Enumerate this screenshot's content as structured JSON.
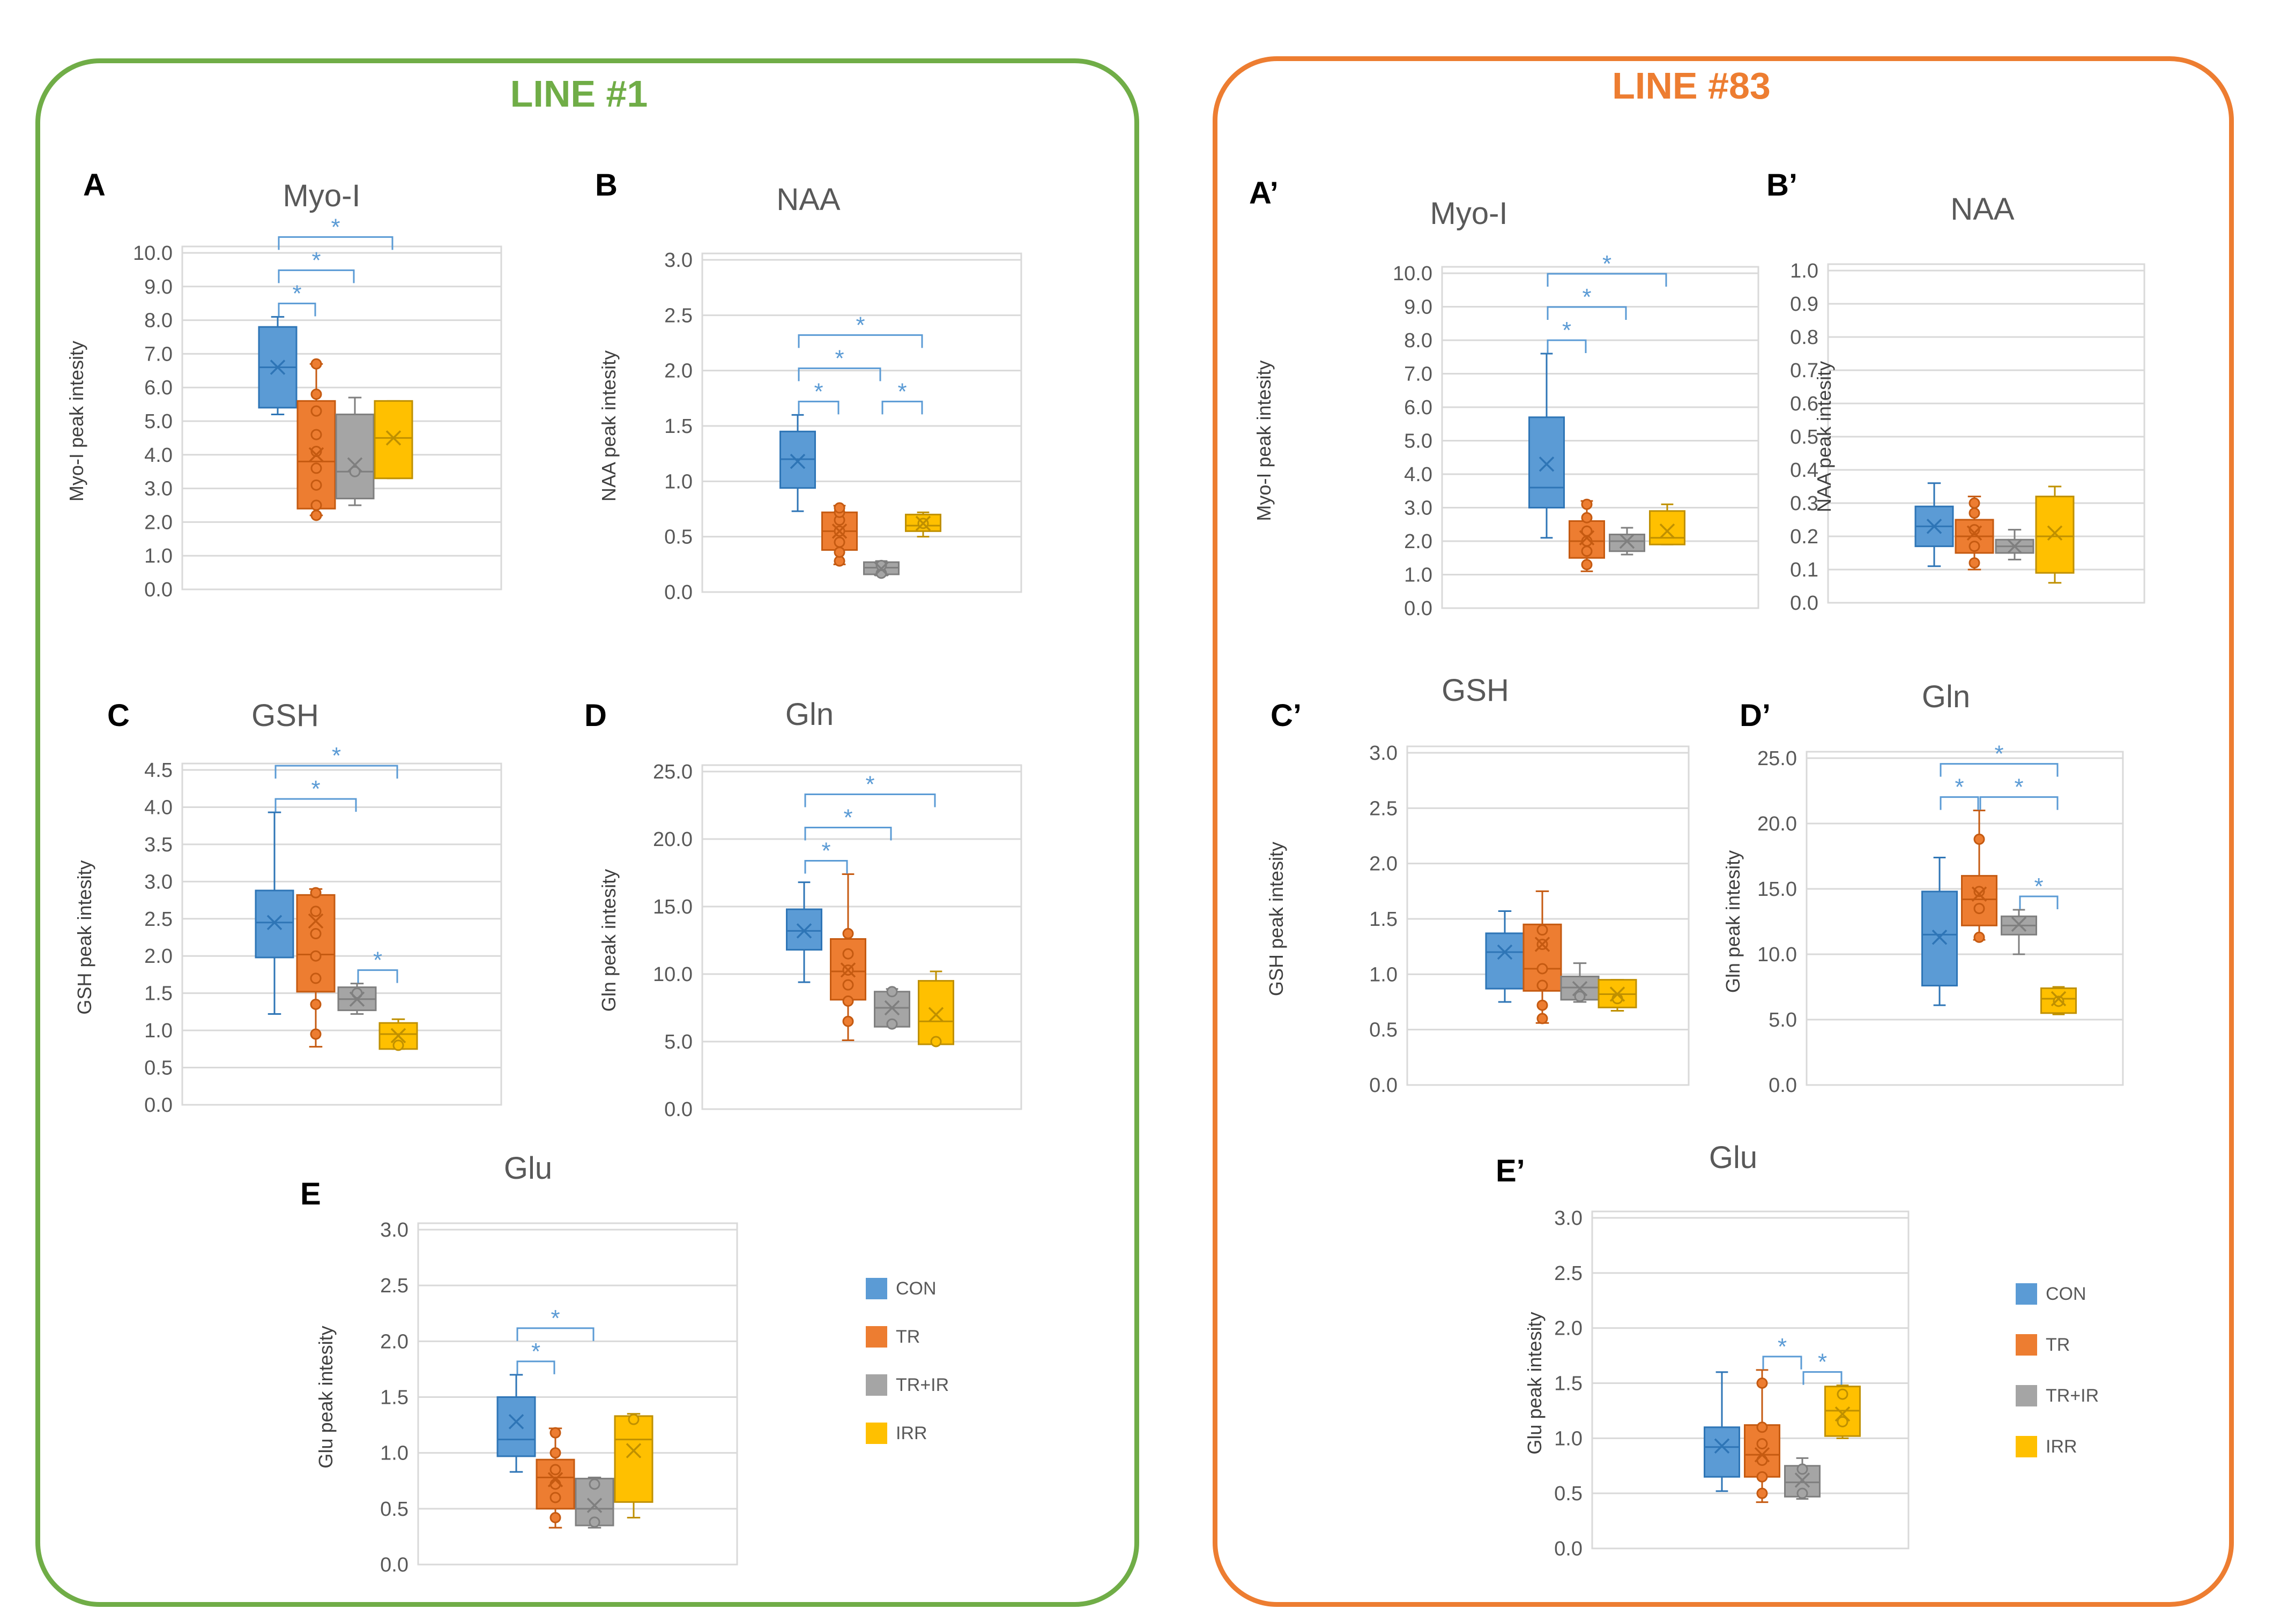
{
  "figure": {
    "lines": [
      {
        "title": "LINE #1",
        "color": "#70AD47"
      },
      {
        "title": "LINE #83",
        "color": "#ED7D31"
      }
    ],
    "legend": [
      {
        "label": "CON",
        "color": "#5B9BD5"
      },
      {
        "label": "TR",
        "color": "#ED7D31"
      },
      {
        "label": "TR+IR",
        "color": "#A5A5A5"
      },
      {
        "label": "IRR",
        "color": "#FFC000"
      }
    ]
  },
  "chart_data": [
    {
      "type": "box",
      "panel": "A",
      "title": "Myo-I",
      "ylabel": "Myo-I peak intesity",
      "ylim": [
        0,
        10
      ],
      "ticks": [
        0,
        1,
        2,
        3,
        4,
        5,
        6,
        7,
        8,
        9,
        10
      ],
      "decimals": 1,
      "groups": [
        {
          "name": "CON",
          "min": 5.2,
          "q1": 5.4,
          "median": 6.6,
          "q3": 7.8,
          "max": 8.1,
          "mean": 6.6,
          "points": []
        },
        {
          "name": "TR",
          "min": 2.2,
          "q1": 2.4,
          "median": 3.8,
          "q3": 5.6,
          "max": 6.7,
          "mean": 4.0,
          "points": [
            2.2,
            2.5,
            3.1,
            3.6,
            4.1,
            4.6,
            5.3,
            5.8,
            6.7
          ]
        },
        {
          "name": "TR+IR",
          "min": 2.5,
          "q1": 2.7,
          "median": 3.5,
          "q3": 5.2,
          "max": 5.7,
          "mean": 3.7,
          "points": [
            3.5
          ]
        },
        {
          "name": "IRR",
          "min": 3.3,
          "q1": 3.3,
          "median": 4.5,
          "q3": 5.6,
          "max": 5.6,
          "mean": 4.5,
          "points": []
        }
      ],
      "sig": [
        {
          "g1": 0,
          "g2": 1,
          "level": 1
        },
        {
          "g1": 0,
          "g2": 2,
          "level": 2
        },
        {
          "g1": 0,
          "g2": 3,
          "level": 3
        }
      ],
      "sig_label": "*"
    },
    {
      "type": "box",
      "panel": "B",
      "title": "NAA",
      "ylabel": "NAA peak intesity",
      "ylim": [
        0,
        3
      ],
      "ticks": [
        0,
        0.5,
        1,
        1.5,
        2,
        2.5,
        3
      ],
      "decimals": 1,
      "groups": [
        {
          "name": "CON",
          "min": 0.73,
          "q1": 0.94,
          "median": 1.2,
          "q3": 1.45,
          "max": 1.6,
          "mean": 1.18,
          "points": []
        },
        {
          "name": "TR",
          "min": 0.25,
          "q1": 0.38,
          "median": 0.55,
          "q3": 0.72,
          "max": 0.78,
          "mean": 0.55,
          "points": [
            0.28,
            0.36,
            0.45,
            0.55,
            0.65,
            0.72,
            0.76
          ]
        },
        {
          "name": "TR+IR",
          "min": 0.15,
          "q1": 0.16,
          "median": 0.22,
          "q3": 0.27,
          "max": 0.28,
          "mean": 0.21,
          "points": [
            0.17,
            0.24
          ]
        },
        {
          "name": "IRR",
          "min": 0.5,
          "q1": 0.55,
          "median": 0.6,
          "q3": 0.7,
          "max": 0.72,
          "mean": 0.62,
          "points": [
            0.62
          ]
        }
      ],
      "sig": [
        {
          "g1": 0,
          "g2": 1,
          "level": 1
        },
        {
          "g1": 0,
          "g2": 2,
          "level": 2
        },
        {
          "g1": 0,
          "g2": 3,
          "level": 3
        },
        {
          "g1": 2,
          "g2": 3,
          "level": 1
        }
      ],
      "sig_label": "*"
    },
    {
      "type": "box",
      "panel": "C",
      "title": "GSH",
      "ylabel": "GSH peak intesity",
      "ylim": [
        0,
        4.5
      ],
      "ticks": [
        0,
        0.5,
        1,
        1.5,
        2,
        2.5,
        3,
        3.5,
        4,
        4.5
      ],
      "decimals": 1,
      "groups": [
        {
          "name": "CON",
          "min": 1.22,
          "q1": 1.98,
          "median": 2.45,
          "q3": 2.88,
          "max": 3.93,
          "mean": 2.45,
          "points": []
        },
        {
          "name": "TR",
          "min": 0.78,
          "q1": 1.52,
          "median": 2.02,
          "q3": 2.82,
          "max": 2.9,
          "mean": 2.47,
          "points": [
            0.95,
            1.35,
            1.7,
            2.0,
            2.3,
            2.6,
            2.85
          ]
        },
        {
          "name": "TR+IR",
          "min": 1.22,
          "q1": 1.27,
          "median": 1.42,
          "q3": 1.58,
          "max": 1.63,
          "mean": 1.42,
          "points": [
            1.5
          ]
        },
        {
          "name": "IRR",
          "min": 0.75,
          "q1": 0.75,
          "median": 0.95,
          "q3": 1.1,
          "max": 1.15,
          "mean": 0.93,
          "points": [
            0.8
          ]
        }
      ],
      "sig": [
        {
          "g1": 0,
          "g2": 2,
          "level": 1
        },
        {
          "g1": 0,
          "g2": 3,
          "level": 2
        },
        {
          "g1": 2,
          "g2": 3,
          "level": 0
        }
      ],
      "sig_label": "*"
    },
    {
      "type": "box",
      "panel": "D",
      "title": "Gln",
      "ylabel": "Gln peak intesity",
      "ylim": [
        0,
        25
      ],
      "ticks": [
        0,
        5,
        10,
        15,
        20,
        25
      ],
      "decimals": 1,
      "groups": [
        {
          "name": "CON",
          "min": 9.4,
          "q1": 11.8,
          "median": 13.2,
          "q3": 14.8,
          "max": 16.8,
          "mean": 13.2,
          "points": []
        },
        {
          "name": "TR",
          "min": 5.1,
          "q1": 8.1,
          "median": 10.2,
          "q3": 12.6,
          "max": 17.4,
          "mean": 10.3,
          "points": [
            6.5,
            8.0,
            9.2,
            10.3,
            11.5,
            13.0
          ]
        },
        {
          "name": "TR+IR",
          "min": 6.1,
          "q1": 6.1,
          "median": 7.5,
          "q3": 8.7,
          "max": 8.9,
          "mean": 7.5,
          "points": [
            6.3,
            8.7
          ]
        },
        {
          "name": "IRR",
          "min": 4.8,
          "q1": 4.8,
          "median": 6.5,
          "q3": 9.5,
          "max": 10.2,
          "mean": 7.0,
          "points": [
            5.0
          ]
        }
      ],
      "sig": [
        {
          "g1": 0,
          "g2": 1,
          "level": 1
        },
        {
          "g1": 0,
          "g2": 2,
          "level": 2
        },
        {
          "g1": 0,
          "g2": 3,
          "level": 3
        }
      ],
      "sig_label": "*"
    },
    {
      "type": "box",
      "panel": "E",
      "title": "Glu",
      "ylabel": "Glu peak intesity",
      "ylim": [
        0,
        3
      ],
      "ticks": [
        0,
        0.5,
        1,
        1.5,
        2,
        2.5,
        3
      ],
      "decimals": 1,
      "groups": [
        {
          "name": "CON",
          "min": 0.83,
          "q1": 0.97,
          "median": 1.12,
          "q3": 1.5,
          "max": 1.7,
          "mean": 1.28,
          "points": []
        },
        {
          "name": "TR",
          "min": 0.33,
          "q1": 0.5,
          "median": 0.78,
          "q3": 0.94,
          "max": 1.22,
          "mean": 0.76,
          "points": [
            0.42,
            0.6,
            0.72,
            0.85,
            1.0,
            1.18
          ]
        },
        {
          "name": "TR+IR",
          "min": 0.33,
          "q1": 0.35,
          "median": 0.5,
          "q3": 0.77,
          "max": 0.78,
          "mean": 0.53,
          "points": [
            0.38,
            0.72
          ]
        },
        {
          "name": "IRR",
          "min": 0.42,
          "q1": 0.56,
          "median": 1.12,
          "q3": 1.33,
          "max": 1.35,
          "mean": 1.02,
          "points": [
            1.3
          ]
        }
      ],
      "sig": [
        {
          "g1": 0,
          "g2": 1,
          "level": 1
        },
        {
          "g1": 0,
          "g2": 2,
          "level": 2
        }
      ],
      "sig_label": "*"
    },
    {
      "type": "box",
      "panel": "A’",
      "title": "Myo-I",
      "ylabel": "Myo-I peak intesity",
      "ylim": [
        0,
        10
      ],
      "ticks": [
        0,
        1,
        2,
        3,
        4,
        5,
        6,
        7,
        8,
        9,
        10
      ],
      "decimals": 1,
      "groups": [
        {
          "name": "CON",
          "min": 2.1,
          "q1": 3.0,
          "median": 3.6,
          "q3": 5.7,
          "max": 7.6,
          "mean": 4.3,
          "points": []
        },
        {
          "name": "TR",
          "min": 1.1,
          "q1": 1.5,
          "median": 2.0,
          "q3": 2.6,
          "max": 3.2,
          "mean": 2.1,
          "points": [
            1.3,
            1.7,
            2.0,
            2.3,
            2.7,
            3.1
          ]
        },
        {
          "name": "TR+IR",
          "min": 1.6,
          "q1": 1.7,
          "median": 2.0,
          "q3": 2.2,
          "max": 2.4,
          "mean": 2.0,
          "points": []
        },
        {
          "name": "IRR",
          "min": 1.9,
          "q1": 1.9,
          "median": 2.1,
          "q3": 2.9,
          "max": 3.1,
          "mean": 2.3,
          "points": []
        }
      ],
      "sig": [
        {
          "g1": 0,
          "g2": 1,
          "level": 1
        },
        {
          "g1": 0,
          "g2": 2,
          "level": 2
        },
        {
          "g1": 0,
          "g2": 3,
          "level": 3
        }
      ],
      "sig_label": "*"
    },
    {
      "type": "box",
      "panel": "B’",
      "title": "NAA",
      "ylabel": "NAA peak intesity",
      "ylim": [
        0,
        1
      ],
      "ticks": [
        0,
        0.1,
        0.2,
        0.3,
        0.4,
        0.5,
        0.6,
        0.7,
        0.8,
        0.9,
        1
      ],
      "decimals": 1,
      "groups": [
        {
          "name": "CON",
          "min": 0.11,
          "q1": 0.17,
          "median": 0.23,
          "q3": 0.29,
          "max": 0.36,
          "mean": 0.23,
          "points": []
        },
        {
          "name": "TR",
          "min": 0.1,
          "q1": 0.15,
          "median": 0.2,
          "q3": 0.25,
          "max": 0.32,
          "mean": 0.21,
          "points": [
            0.12,
            0.17,
            0.22,
            0.27,
            0.3
          ]
        },
        {
          "name": "TR+IR",
          "min": 0.13,
          "q1": 0.15,
          "median": 0.17,
          "q3": 0.19,
          "max": 0.22,
          "mean": 0.17,
          "points": []
        },
        {
          "name": "IRR",
          "min": 0.06,
          "q1": 0.09,
          "median": 0.2,
          "q3": 0.32,
          "max": 0.35,
          "mean": 0.21,
          "points": []
        }
      ],
      "sig": [],
      "sig_label": "*"
    },
    {
      "type": "box",
      "panel": "C’",
      "title": "GSH",
      "ylabel": "GSH peak intesity",
      "ylim": [
        0,
        3
      ],
      "ticks": [
        0,
        0.5,
        1,
        1.5,
        2,
        2.5,
        3
      ],
      "decimals": 1,
      "groups": [
        {
          "name": "CON",
          "min": 0.75,
          "q1": 0.87,
          "median": 1.2,
          "q3": 1.37,
          "max": 1.57,
          "mean": 1.2,
          "points": []
        },
        {
          "name": "TR",
          "min": 0.56,
          "q1": 0.85,
          "median": 1.05,
          "q3": 1.45,
          "max": 1.75,
          "mean": 1.27,
          "points": [
            0.6,
            0.72,
            0.9,
            1.05,
            1.27,
            1.4
          ]
        },
        {
          "name": "TR+IR",
          "min": 0.75,
          "q1": 0.77,
          "median": 0.88,
          "q3": 0.98,
          "max": 1.1,
          "mean": 0.87,
          "points": [
            0.8
          ]
        },
        {
          "name": "IRR",
          "min": 0.67,
          "q1": 0.7,
          "median": 0.82,
          "q3": 0.95,
          "max": 0.95,
          "mean": 0.82,
          "points": [
            0.78
          ]
        }
      ],
      "sig": [],
      "sig_label": "*"
    },
    {
      "type": "box",
      "panel": "D’",
      "title": "Gln",
      "ylabel": "Gln peak intesity",
      "ylim": [
        0,
        25
      ],
      "ticks": [
        0,
        5,
        10,
        15,
        20,
        25
      ],
      "decimals": 1,
      "groups": [
        {
          "name": "CON",
          "min": 6.1,
          "q1": 7.6,
          "median": 11.5,
          "q3": 14.8,
          "max": 17.4,
          "mean": 11.3,
          "points": []
        },
        {
          "name": "TR",
          "min": 11.1,
          "q1": 12.2,
          "median": 14.2,
          "q3": 16.0,
          "max": 21.0,
          "mean": 14.6,
          "points": [
            11.3,
            13.5,
            14.8,
            18.8
          ]
        },
        {
          "name": "TR+IR",
          "min": 10.0,
          "q1": 11.5,
          "median": 12.2,
          "q3": 12.9,
          "max": 13.4,
          "mean": 12.3,
          "points": []
        },
        {
          "name": "IRR",
          "min": 5.4,
          "q1": 5.5,
          "median": 6.6,
          "q3": 7.4,
          "max": 7.5,
          "mean": 6.6,
          "points": [
            6.4
          ]
        }
      ],
      "sig": [
        {
          "g1": 0,
          "g2": 1,
          "level": 1
        },
        {
          "g1": 0,
          "g2": 3,
          "level": 2
        },
        {
          "g1": 1,
          "g2": 3,
          "level": 1
        },
        {
          "g1": 2,
          "g2": 3,
          "level": 0
        }
      ],
      "sig_label": "*"
    },
    {
      "type": "box",
      "panel": "E’",
      "title": "Glu",
      "ylabel": "Glu peak intesity",
      "ylim": [
        0,
        3
      ],
      "ticks": [
        0,
        0.5,
        1,
        1.5,
        2,
        2.5,
        3
      ],
      "decimals": 1,
      "groups": [
        {
          "name": "CON",
          "min": 0.52,
          "q1": 0.65,
          "median": 0.92,
          "q3": 1.1,
          "max": 1.6,
          "mean": 0.93,
          "points": []
        },
        {
          "name": "TR",
          "min": 0.42,
          "q1": 0.65,
          "median": 0.85,
          "q3": 1.12,
          "max": 1.62,
          "mean": 0.85,
          "points": [
            0.5,
            0.65,
            0.8,
            0.95,
            1.1,
            1.5
          ]
        },
        {
          "name": "TR+IR",
          "min": 0.45,
          "q1": 0.47,
          "median": 0.6,
          "q3": 0.75,
          "max": 0.82,
          "mean": 0.62,
          "points": [
            0.5,
            0.72
          ]
        },
        {
          "name": "IRR",
          "min": 1.0,
          "q1": 1.02,
          "median": 1.25,
          "q3": 1.47,
          "max": 1.48,
          "mean": 1.22,
          "points": [
            1.15,
            1.4
          ]
        }
      ],
      "sig": [
        {
          "g1": 1,
          "g2": 2,
          "level": 1
        },
        {
          "g1": 2,
          "g2": 3,
          "level": 0
        }
      ],
      "sig_label": "*"
    }
  ]
}
